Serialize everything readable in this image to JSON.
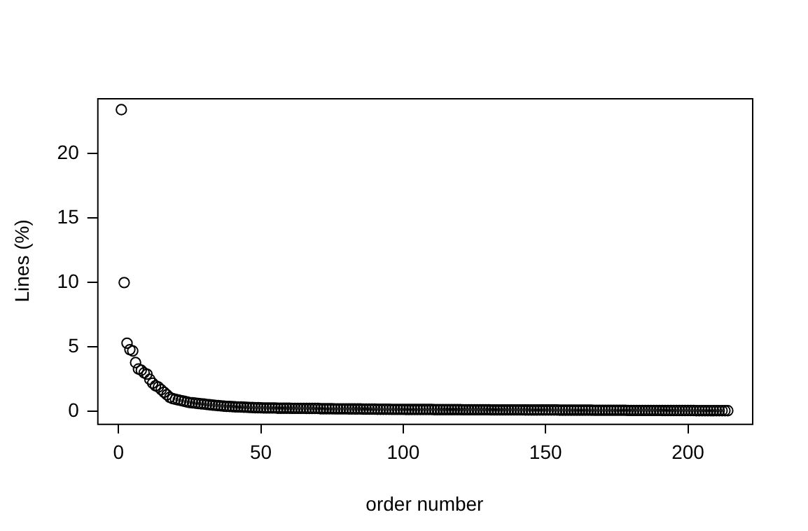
{
  "chart_data": {
    "type": "scatter",
    "xlabel": "order number",
    "ylabel": "Lines (%)",
    "marker": "circle",
    "grid": false,
    "legend": false,
    "xlim": [
      -7.5,
      222.5
    ],
    "ylim": [
      -0.94,
      24.3
    ],
    "xticks": [
      0,
      50,
      100,
      150,
      200
    ],
    "yticks": [
      0,
      5,
      10,
      15,
      20
    ],
    "x": [
      1,
      2,
      3,
      4,
      5,
      6,
      7,
      8,
      9,
      10,
      11,
      12,
      13,
      14,
      15,
      16,
      17,
      18,
      19,
      20,
      21,
      22,
      23,
      24,
      25,
      26,
      27,
      28,
      29,
      30,
      31,
      32,
      33,
      34,
      35,
      36,
      37,
      38,
      39,
      40,
      41,
      42,
      43,
      44,
      45,
      46,
      47,
      48,
      49,
      50,
      51,
      52,
      53,
      54,
      55,
      56,
      57,
      58,
      59,
      60,
      61,
      62,
      63,
      64,
      65,
      66,
      67,
      68,
      69,
      70,
      71,
      72,
      73,
      74,
      75,
      76,
      77,
      78,
      79,
      80,
      81,
      82,
      83,
      84,
      85,
      86,
      87,
      88,
      89,
      90,
      91,
      92,
      93,
      94,
      95,
      96,
      97,
      98,
      99,
      100,
      101,
      102,
      103,
      104,
      105,
      106,
      107,
      108,
      109,
      110,
      111,
      112,
      113,
      114,
      115,
      116,
      117,
      118,
      119,
      120,
      121,
      122,
      123,
      124,
      125,
      126,
      127,
      128,
      129,
      130,
      131,
      132,
      133,
      134,
      135,
      136,
      137,
      138,
      139,
      140,
      141,
      142,
      143,
      144,
      145,
      146,
      147,
      148,
      149,
      150,
      151,
      152,
      153,
      154,
      155,
      156,
      157,
      158,
      159,
      160,
      161,
      162,
      163,
      164,
      165,
      166,
      167,
      168,
      169,
      170,
      171,
      172,
      173,
      174,
      175,
      176,
      177,
      178,
      179,
      180,
      181,
      182,
      183,
      184,
      185,
      186,
      187,
      188,
      189,
      190,
      191,
      192,
      193,
      194,
      195,
      196,
      197,
      198,
      199,
      200,
      201,
      202,
      203,
      204,
      205,
      206,
      207,
      208,
      209,
      210,
      211,
      212,
      213,
      214
    ],
    "series": [
      {
        "color": "#000000",
        "values": [
          23.4,
          10.0,
          5.3,
          4.8,
          4.7,
          3.8,
          3.3,
          3.2,
          3.0,
          2.9,
          2.5,
          2.2,
          2.0,
          1.9,
          1.7,
          1.5,
          1.3,
          1.1,
          1.0,
          0.95,
          0.9,
          0.85,
          0.8,
          0.75,
          0.7,
          0.68,
          0.65,
          0.62,
          0.6,
          0.58,
          0.55,
          0.53,
          0.5,
          0.48,
          0.46,
          0.44,
          0.42,
          0.4,
          0.39,
          0.38,
          0.37,
          0.36,
          0.35,
          0.34,
          0.33,
          0.32,
          0.31,
          0.3,
          0.3,
          0.29,
          0.28,
          0.28,
          0.28,
          0.28,
          0.28,
          0.26,
          0.26,
          0.26,
          0.26,
          0.26,
          0.25,
          0.25,
          0.25,
          0.25,
          0.25,
          0.24,
          0.24,
          0.24,
          0.24,
          0.24,
          0.22,
          0.22,
          0.22,
          0.22,
          0.22,
          0.21,
          0.21,
          0.21,
          0.21,
          0.21,
          0.2,
          0.2,
          0.2,
          0.2,
          0.2,
          0.19,
          0.19,
          0.19,
          0.19,
          0.19,
          0.18,
          0.18,
          0.18,
          0.18,
          0.18,
          0.17,
          0.17,
          0.17,
          0.17,
          0.17,
          0.16,
          0.16,
          0.16,
          0.16,
          0.16,
          0.16,
          0.16,
          0.16,
          0.16,
          0.16,
          0.15,
          0.15,
          0.15,
          0.15,
          0.15,
          0.15,
          0.15,
          0.15,
          0.15,
          0.15,
          0.14,
          0.14,
          0.14,
          0.14,
          0.14,
          0.14,
          0.14,
          0.14,
          0.14,
          0.14,
          0.13,
          0.13,
          0.13,
          0.13,
          0.13,
          0.13,
          0.13,
          0.13,
          0.13,
          0.13,
          0.13,
          0.13,
          0.12,
          0.12,
          0.12,
          0.12,
          0.12,
          0.12,
          0.12,
          0.12,
          0.12,
          0.12,
          0.12,
          0.12,
          0.11,
          0.11,
          0.11,
          0.11,
          0.11,
          0.11,
          0.11,
          0.11,
          0.11,
          0.11,
          0.11,
          0.11,
          0.1,
          0.1,
          0.1,
          0.1,
          0.1,
          0.1,
          0.1,
          0.1,
          0.1,
          0.1,
          0.1,
          0.1,
          0.09,
          0.09,
          0.09,
          0.09,
          0.09,
          0.09,
          0.09,
          0.09,
          0.09,
          0.09,
          0.09,
          0.09,
          0.08,
          0.08,
          0.08,
          0.08,
          0.08,
          0.08,
          0.08,
          0.08,
          0.08,
          0.08,
          0.08,
          0.08,
          0.07,
          0.07,
          0.07,
          0.07,
          0.07,
          0.07,
          0.07,
          0.07,
          0.07,
          0.07,
          0.07,
          0.07
        ]
      }
    ]
  }
}
